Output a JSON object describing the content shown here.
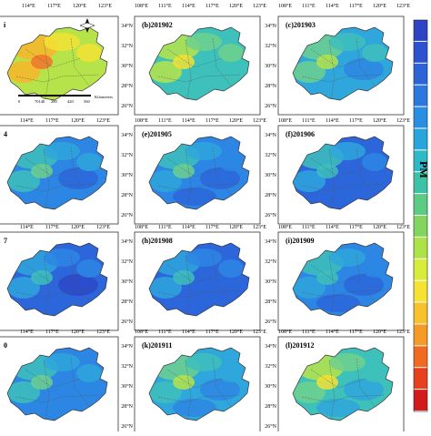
{
  "axis": {
    "lon_labels": [
      "114°E",
      "117°E",
      "120°E",
      "123°E"
    ],
    "lon_labels_full": [
      "108°E",
      "111°E",
      "114°E",
      "117°E",
      "120°E",
      "123°E"
    ],
    "lon_labels_first": [
      "E",
      "114°E",
      "117°E",
      "120°E",
      "123°E"
    ],
    "lat_labels": [
      "34°N",
      "30°N",
      "26°N"
    ],
    "lat_labels_detail": [
      "34°N",
      "32°N",
      "30°N",
      "28°N",
      "26°N"
    ]
  },
  "panels": [
    {
      "label": "i",
      "level": 0.62
    },
    {
      "label": "(b)201902",
      "level": 0.42
    },
    {
      "label": "(c)201903",
      "level": 0.3
    },
    {
      "label": "4",
      "level": 0.2
    },
    {
      "label": "(e)201905",
      "level": 0.18
    },
    {
      "label": "(f)201906",
      "level": 0.14
    },
    {
      "label": "7",
      "level": 0.1
    },
    {
      "label": "(h)201908",
      "level": 0.11
    },
    {
      "label": "(i)201909",
      "level": 0.16
    },
    {
      "label": "0",
      "level": 0.22
    },
    {
      "label": "(k)201911",
      "level": 0.28
    },
    {
      "label": "(l)201912",
      "level": 0.38
    }
  ],
  "scale_bar": {
    "label": "Kilometers",
    "ticks": [
      "0",
      "70140",
      "280",
      "420",
      "560"
    ]
  },
  "legend": {
    "title": "PM",
    "colors": [
      "#d21c1c",
      "#e8401e",
      "#f06a22",
      "#f59a26",
      "#f8c02a",
      "#f6e233",
      "#d8ec3b",
      "#aee348",
      "#82d660",
      "#5ccb83",
      "#3ec2a6",
      "#2fb8c6",
      "#2aa5dc",
      "#2a8fe2",
      "#2b79df",
      "#2c64d8",
      "#2d52cf",
      "#2e44c4"
    ],
    "accent": "#1f3ab5"
  }
}
